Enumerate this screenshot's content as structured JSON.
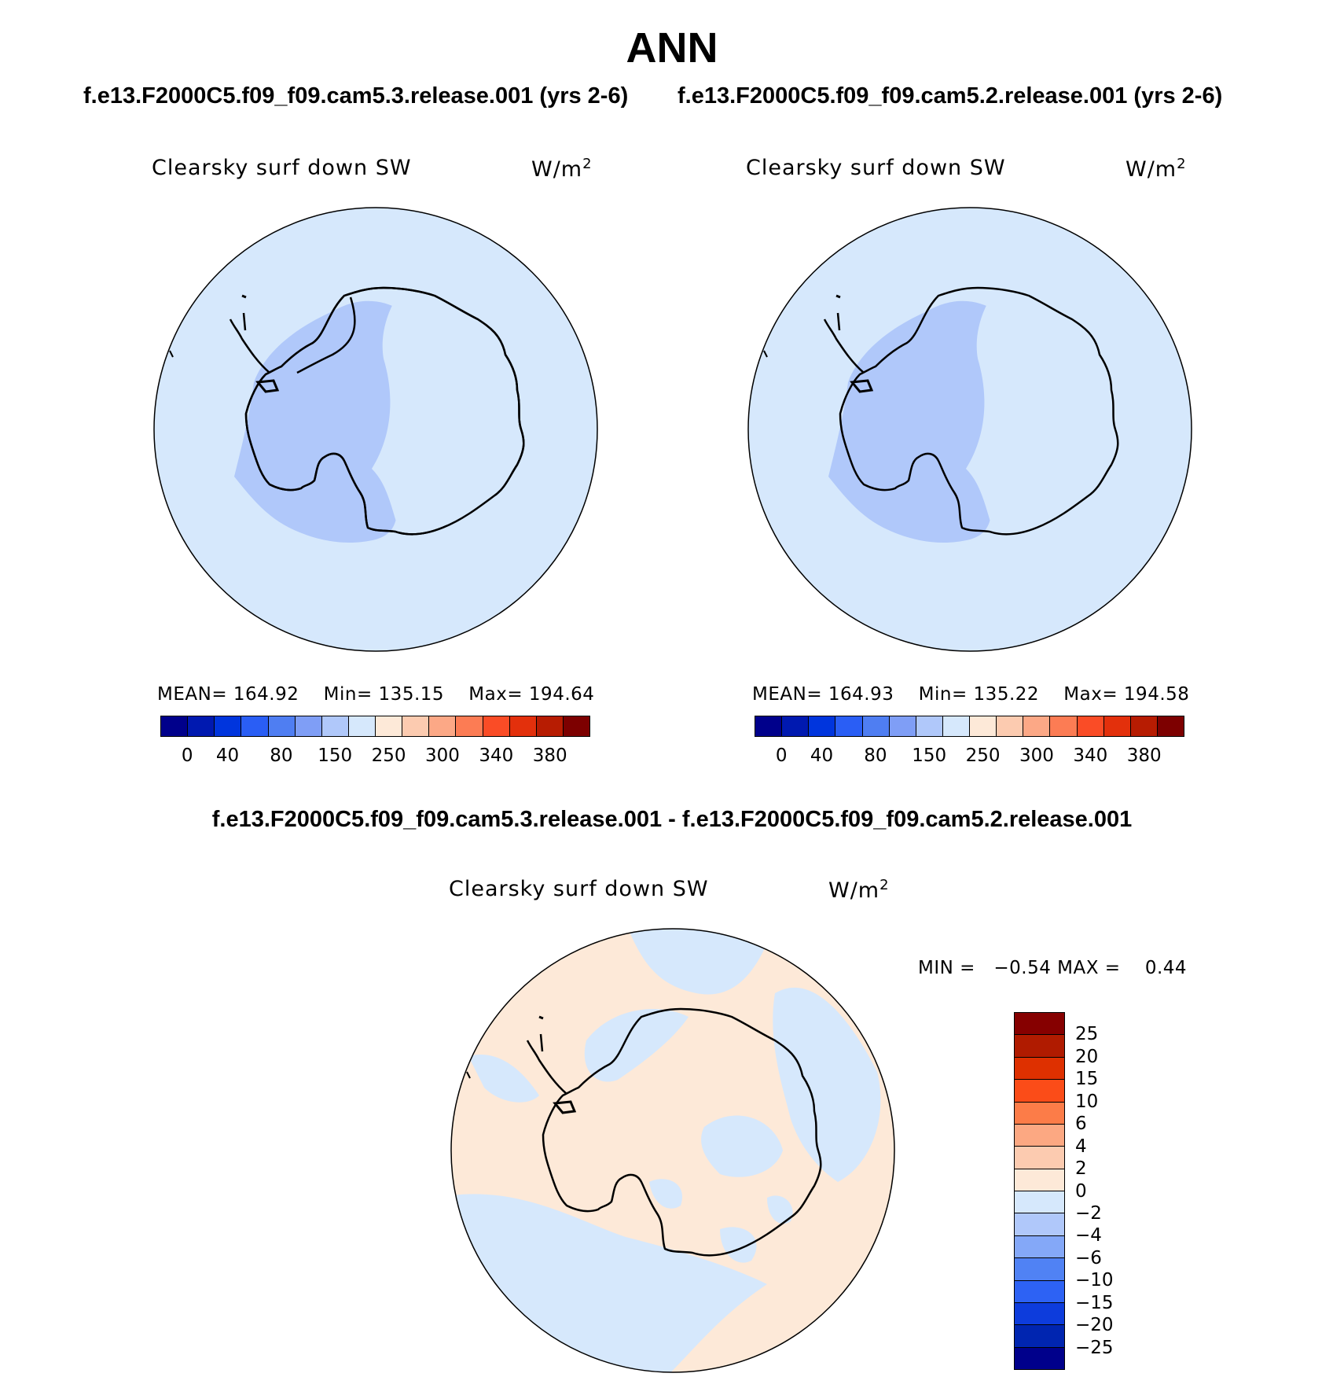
{
  "title": "ANN",
  "panels": [
    {
      "case_title": "f.e13.F2000C5.f09_f09.cam5.3.release.001 (yrs 2-6)",
      "variable": "Clearsky surf down SW",
      "units_base": "W/m",
      "units_exp": "2",
      "stats": {
        "mean_label": "MEAN=",
        "mean": "164.92",
        "min_label": "Min=",
        "min": "135.15",
        "max_label": "Max=",
        "max": "194.64"
      }
    },
    {
      "case_title": "f.e13.F2000C5.f09_f09.cam5.2.release.001 (yrs 2-6)",
      "variable": "Clearsky surf down SW",
      "units_base": "W/m",
      "units_exp": "2",
      "stats": {
        "mean_label": "MEAN=",
        "mean": "164.93",
        "min_label": "Min=",
        "min": "135.22",
        "max_label": "Max=",
        "max": "194.58"
      }
    }
  ],
  "abs_colorbar": {
    "colors": [
      "#00008b",
      "#0019b0",
      "#0035dd",
      "#2a5ef5",
      "#4f7ef2",
      "#7f9ef6",
      "#b0c8fa",
      "#d6e8fc",
      "#fde9d8",
      "#fccbb0",
      "#fca886",
      "#fc7c54",
      "#fa4c26",
      "#e3300c",
      "#b71c02",
      "#7d0000"
    ],
    "labels": [
      "0",
      "40",
      "80",
      "150",
      "250",
      "300",
      "340",
      "380"
    ]
  },
  "difference": {
    "title": "f.e13.F2000C5.f09_f09.cam5.3.release.001 - f.e13.F2000C5.f09_f09.cam5.2.release.001",
    "variable": "Clearsky surf down SW",
    "units_base": "W/m",
    "units_exp": "2",
    "min_label": "MIN =",
    "min": "−0.54",
    "max_label": "MAX =",
    "max": "0.44",
    "colorbar": {
      "colors": [
        "#860000",
        "#b01b00",
        "#de3000",
        "#fb4c18",
        "#fc7c48",
        "#fca882",
        "#fccbb0",
        "#fde9d8",
        "#d6e8fc",
        "#b0c8fa",
        "#84a8f8",
        "#5082f4",
        "#2d62f4",
        "#0d3cdc",
        "#0025b0",
        "#00008b"
      ],
      "labels": [
        "25",
        "20",
        "15",
        "10",
        "6",
        "4",
        "2",
        "0",
        "−2",
        "−4",
        "−6",
        "−10",
        "−15",
        "−20",
        "−25"
      ]
    }
  },
  "map_colors": {
    "ocean": "#d6e8fc",
    "west_antarctica": "#b0c8fa",
    "east_antarctica": "#d6e8fc",
    "diff_positive": "#fde9d8",
    "diff_negative": "#d6e8fc"
  }
}
